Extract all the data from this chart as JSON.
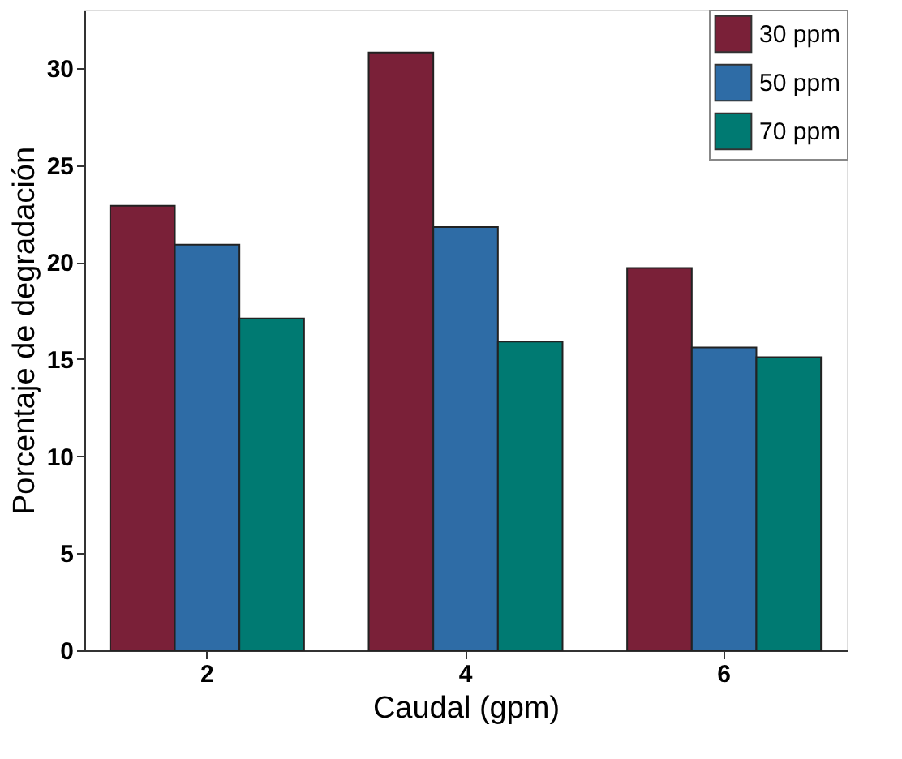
{
  "chart_data": {
    "type": "bar",
    "xlabel": "Caudal (gpm)",
    "ylabel": "Porcentaje  de degradación",
    "categories": [
      "2",
      "4",
      "6"
    ],
    "series": [
      {
        "name": "30 ppm",
        "color": "#7a2038",
        "values": [
          22.9,
          30.8,
          19.7
        ]
      },
      {
        "name": "50 ppm",
        "color": "#2e6ca6",
        "values": [
          20.9,
          21.8,
          15.6
        ]
      },
      {
        "name": "70 ppm",
        "color": "#007a72",
        "values": [
          17.1,
          15.9,
          15.1
        ]
      }
    ],
    "ylim": [
      0,
      33
    ],
    "yticks": [
      0,
      5,
      10,
      15,
      20,
      25,
      30
    ],
    "grid": false,
    "legend": "top right"
  }
}
